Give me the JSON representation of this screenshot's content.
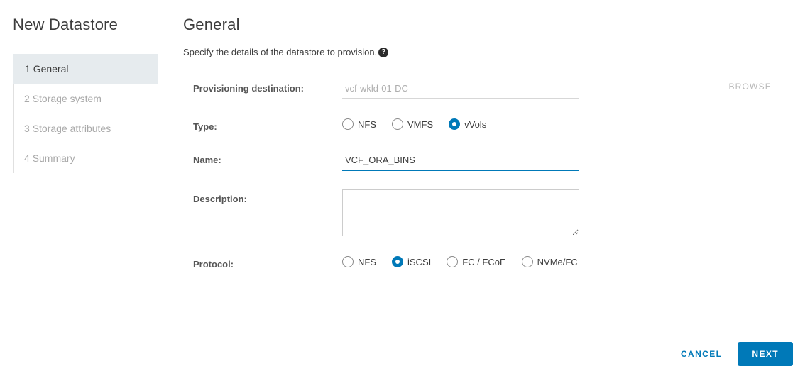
{
  "wizard": {
    "title": "New Datastore",
    "steps": [
      {
        "num": "1",
        "label": "General",
        "active": true
      },
      {
        "num": "2",
        "label": "Storage system",
        "active": false
      },
      {
        "num": "3",
        "label": "Storage attributes",
        "active": false
      },
      {
        "num": "4",
        "label": "Summary",
        "active": false
      }
    ]
  },
  "page": {
    "title": "General",
    "subtitle": "Specify the details of the datastore to provision."
  },
  "form": {
    "destination": {
      "label": "Provisioning destination:",
      "value": "vcf-wkld-01-DC",
      "browse": "BROWSE"
    },
    "type": {
      "label": "Type:",
      "options": [
        {
          "label": "NFS",
          "selected": false
        },
        {
          "label": "VMFS",
          "selected": false
        },
        {
          "label": "vVols",
          "selected": true
        }
      ]
    },
    "name": {
      "label": "Name:",
      "value": "VCF_ORA_BINS"
    },
    "description": {
      "label": "Description:",
      "value": ""
    },
    "protocol": {
      "label": "Protocol:",
      "options": [
        {
          "label": "NFS",
          "selected": false
        },
        {
          "label": "iSCSI",
          "selected": true
        },
        {
          "label": "FC / FCoE",
          "selected": false
        },
        {
          "label": "NVMe/FC",
          "selected": false
        }
      ]
    }
  },
  "footer": {
    "cancel": "CANCEL",
    "next": "NEXT"
  },
  "colors": {
    "accent": "#0079b8",
    "muted_text": "#a9a9a9",
    "active_bg": "#e6ebee"
  }
}
